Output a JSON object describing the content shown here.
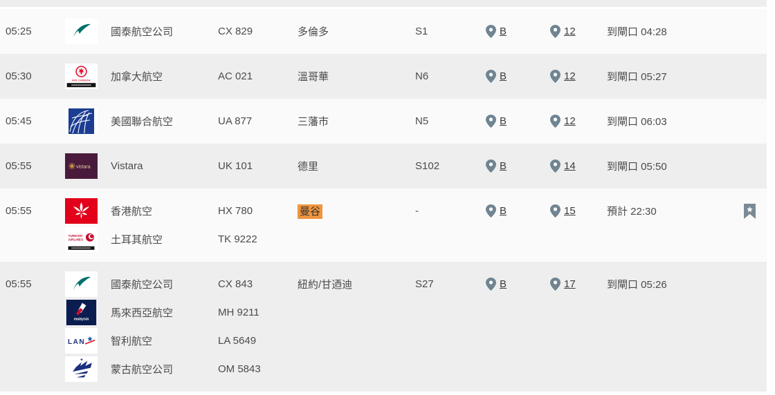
{
  "board": {
    "rows": [
      {
        "time": "05:25",
        "flights": [
          {
            "airline": "國泰航空公司",
            "code": "CX 829",
            "logo": "cathay"
          }
        ],
        "destination": "多倫多",
        "destination_highlight": false,
        "stand": "S1",
        "hall": "B",
        "belt": "12",
        "status": "到閘口 04:28",
        "bookmarked": false
      },
      {
        "time": "05:30",
        "flights": [
          {
            "airline": "加拿大航空",
            "code": "AC 021",
            "logo": "aircanada"
          }
        ],
        "destination": "溫哥華",
        "destination_highlight": false,
        "stand": "N6",
        "hall": "B",
        "belt": "12",
        "status": "到閘口 05:27",
        "bookmarked": false
      },
      {
        "time": "05:45",
        "flights": [
          {
            "airline": "美國聯合航空",
            "code": "UA 877",
            "logo": "united"
          }
        ],
        "destination": "三藩市",
        "destination_highlight": false,
        "stand": "N5",
        "hall": "B",
        "belt": "12",
        "status": "到閘口 06:03",
        "bookmarked": false
      },
      {
        "time": "05:55",
        "flights": [
          {
            "airline": "Vistara",
            "code": "UK 101",
            "logo": "vistara"
          }
        ],
        "destination": "德里",
        "destination_highlight": false,
        "stand": "S102",
        "hall": "B",
        "belt": "14",
        "status": "到閘口 05:50",
        "bookmarked": false
      },
      {
        "time": "05:55",
        "flights": [
          {
            "airline": "香港航空",
            "code": "HX 780",
            "logo": "hkairlines"
          },
          {
            "airline": "土耳其航空",
            "code": "TK 9222",
            "logo": "turkish"
          }
        ],
        "destination": "曼谷",
        "destination_highlight": true,
        "stand": "-",
        "hall": "B",
        "belt": "15",
        "status": "預計 22:30",
        "bookmarked": true
      },
      {
        "time": "05:55",
        "flights": [
          {
            "airline": "國泰航空公司",
            "code": "CX 843",
            "logo": "cathay"
          },
          {
            "airline": "馬來西亞航空",
            "code": "MH 9211",
            "logo": "malaysia"
          },
          {
            "airline": "智利航空",
            "code": "LA 5649",
            "logo": "lan"
          },
          {
            "airline": "蒙古航空公司",
            "code": "OM 5843",
            "logo": "miat"
          }
        ],
        "destination": "紐約/甘迺迪",
        "destination_highlight": false,
        "stand": "S27",
        "hall": "B",
        "belt": "17",
        "status": "到閘口 05:26",
        "bookmarked": false
      }
    ],
    "logo_text": {
      "air_canada": "AIR CANADA",
      "vistara": "vistara",
      "turkish_line1": "TURKISH",
      "turkish_line2": "AIRLINES",
      "malaysia": "malaysia",
      "lan": "LAN"
    },
    "icons": {
      "hall": "location-pin",
      "belt": "location-pin",
      "bookmark": "bookmark-star"
    },
    "colors": {
      "highlight": "#F0953F",
      "pin_icon": "#708492",
      "bookmark_icon": "#7A8B96",
      "row_light": "#FAFAFA",
      "row_alt": "#EEEEEE",
      "text": "#4B4B4B",
      "cathay_teal": "#00706B",
      "air_canada_red": "#E01933",
      "united_blue": "#1B3D92",
      "vistara_plum": "#4A1A3C",
      "hk_airlines_red": "#E2001A",
      "turkish_red": "#C40D2E",
      "malaysia_navy": "#0B1D4F",
      "lan_blue": "#1B2F7E",
      "miat_blue": "#1B2F7E"
    }
  }
}
